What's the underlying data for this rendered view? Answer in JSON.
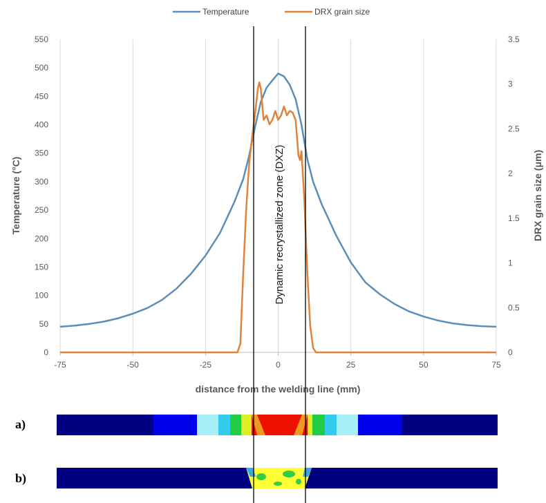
{
  "chart_data": {
    "type": "line",
    "xlabel": "distance from the welding line (mm)",
    "ylabel": "Temperature (°C)",
    "y2label": "DRX grain size (μm)",
    "xlim": [
      -75,
      75
    ],
    "ylim": [
      0,
      550
    ],
    "y2lim": [
      0,
      3.5
    ],
    "x_ticks": [
      "-75",
      "-50",
      "-25",
      "0",
      "25",
      "50",
      "75"
    ],
    "y_ticks": [
      "0",
      "50",
      "100",
      "150",
      "200",
      "250",
      "300",
      "350",
      "400",
      "450",
      "500",
      "550"
    ],
    "y2_ticks": [
      "0",
      "0.5",
      "1",
      "1.5",
      "2",
      "2.5",
      "3",
      "3.5"
    ],
    "grid": "vertical",
    "legend_position": "top",
    "series": [
      {
        "name": "Temperature",
        "axis": "left",
        "color": "#5b8db8",
        "x": [
          -75,
          -70,
          -65,
          -60,
          -55,
          -50,
          -45,
          -40,
          -35,
          -30,
          -25,
          -20,
          -15,
          -12,
          -10,
          -8,
          -6,
          -4,
          -2,
          0,
          2,
          4,
          6,
          8,
          10,
          12,
          15,
          20,
          25,
          30,
          35,
          40,
          45,
          50,
          55,
          60,
          65,
          70,
          75
        ],
        "y": [
          45,
          47,
          50,
          54,
          60,
          68,
          78,
          92,
          112,
          138,
          170,
          210,
          265,
          305,
          345,
          395,
          440,
          465,
          478,
          490,
          485,
          470,
          445,
          400,
          340,
          300,
          260,
          205,
          158,
          123,
          102,
          85,
          72,
          63,
          56,
          51,
          48,
          46,
          45
        ]
      },
      {
        "name": "DRX grain size",
        "axis": "right",
        "color": "#e0823a",
        "x": [
          -75,
          -14,
          -13,
          -12,
          -11,
          -10,
          -9,
          -8,
          -7,
          -6.5,
          -6,
          -5,
          -4,
          -3,
          -2,
          -1,
          0,
          1,
          2,
          3,
          4,
          5,
          6,
          7,
          7.5,
          8,
          9,
          10,
          11,
          12,
          13,
          75
        ],
        "y": [
          0,
          0,
          0.1,
          0.9,
          1.6,
          2.1,
          2.4,
          2.65,
          2.95,
          3.02,
          2.95,
          2.6,
          2.65,
          2.55,
          2.6,
          2.7,
          2.6,
          2.65,
          2.75,
          2.65,
          2.7,
          2.68,
          2.6,
          2.2,
          2.15,
          2.25,
          1.7,
          0.9,
          0.3,
          0.05,
          0,
          0
        ]
      }
    ],
    "annotations": [
      "Dynamic recrystallized zone (DXZ)"
    ],
    "zone_x": [
      -9,
      9
    ]
  },
  "panels": {
    "a_label": "a)",
    "b_label": "b)",
    "a_colors": [
      "#000080",
      "#0000ee",
      "#a6f0fa",
      "#33ccee",
      "#22cc44",
      "#ddee22",
      "#ee9922",
      "#ee1100"
    ],
    "b_colors": [
      "#000080",
      "#ffff33",
      "#33cc44",
      "#33aaee"
    ]
  }
}
